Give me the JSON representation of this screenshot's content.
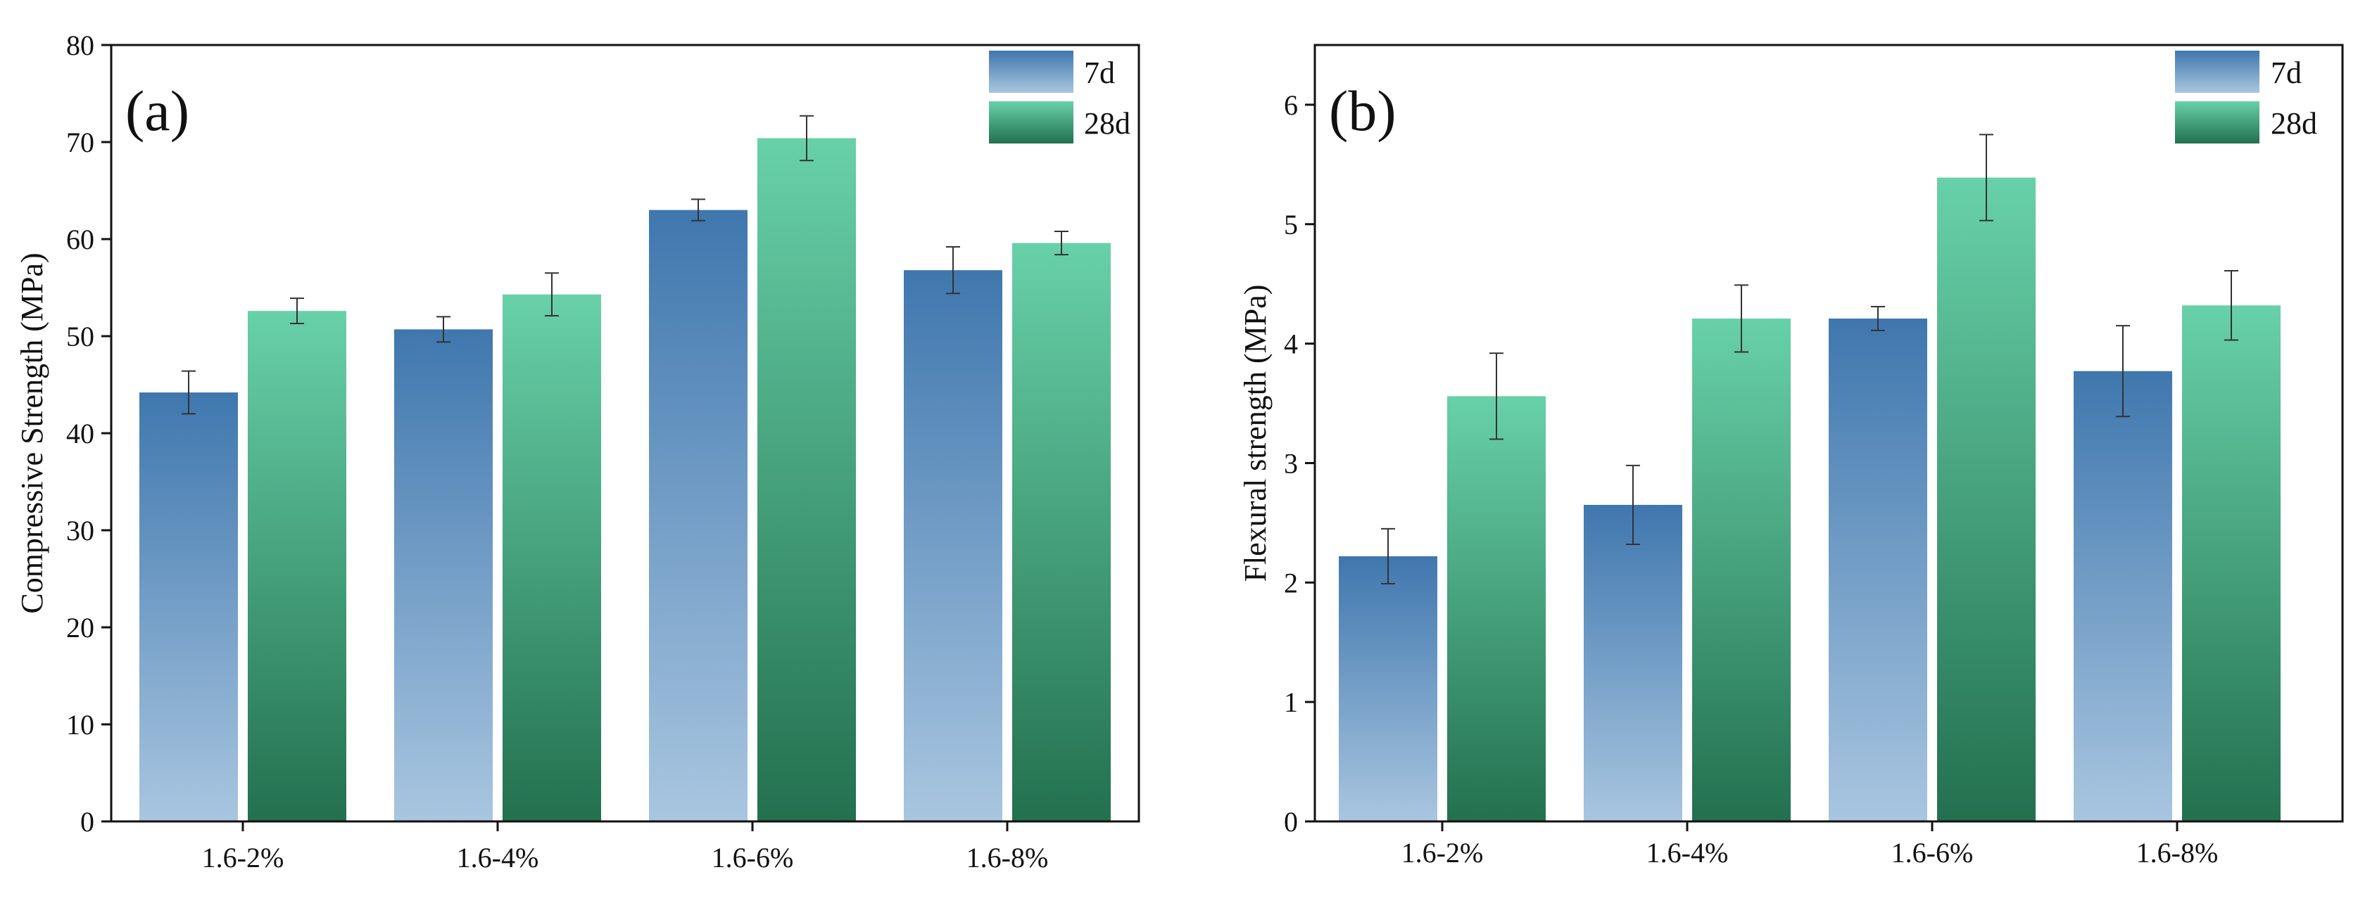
{
  "chart_data": [
    {
      "type": "bar",
      "panel_label": "(a)",
      "title": "",
      "xlabel": "",
      "ylabel": "Compressive Strength (MPa)",
      "ylim": [
        0,
        80
      ],
      "yticks": [
        0,
        10,
        20,
        30,
        40,
        50,
        60,
        70,
        80
      ],
      "categories": [
        "1.6-2%",
        "1.6-4%",
        "1.6-6%",
        "1.6-8%"
      ],
      "series": [
        {
          "name": "7d",
          "values": [
            44.2,
            50.7,
            63.0,
            56.8
          ],
          "errors": [
            2.2,
            1.3,
            1.1,
            2.4
          ]
        },
        {
          "name": "28d",
          "values": [
            52.6,
            54.3,
            70.4,
            59.6
          ],
          "errors": [
            1.3,
            2.2,
            2.3,
            1.2
          ]
        }
      ],
      "legend": "top-right"
    },
    {
      "type": "bar",
      "panel_label": "(b)",
      "title": "",
      "xlabel": "",
      "ylabel": "Flexural strength (MPa)",
      "ylim": [
        0,
        6.5
      ],
      "yticks": [
        0,
        1,
        2,
        3,
        4,
        5,
        6
      ],
      "categories": [
        "1.6-2%",
        "1.6-4%",
        "1.6-6%",
        "1.6-8%"
      ],
      "series": [
        {
          "name": "7d",
          "values": [
            2.22,
            2.65,
            4.21,
            3.77
          ],
          "errors": [
            0.23,
            0.33,
            0.1,
            0.38
          ]
        },
        {
          "name": "28d",
          "values": [
            3.56,
            4.21,
            5.39,
            4.32
          ],
          "errors": [
            0.36,
            0.28,
            0.36,
            0.29
          ]
        }
      ],
      "legend": "top-right"
    }
  ],
  "colors": {
    "d7_top": "#3f77ae",
    "d7_bottom": "#a9c6e0",
    "d28_top": "#68d1a9",
    "d28_bottom": "#23704f",
    "axis": "#111111"
  }
}
